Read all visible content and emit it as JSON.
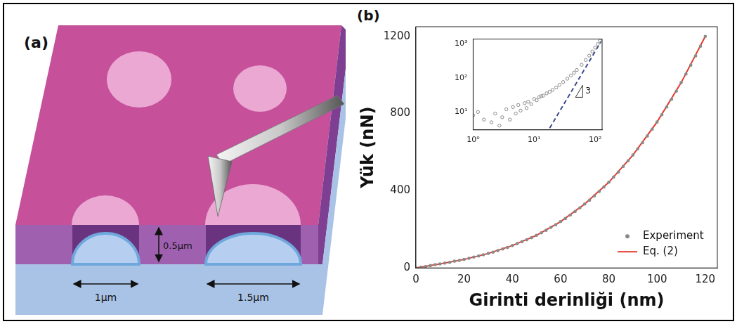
{
  "diagram": {
    "panel": "(a)",
    "thickness_label": "0.5μm",
    "hole_labels": [
      "1μm",
      "1.5μm"
    ]
  },
  "chart_data": [
    {
      "type": "scatter",
      "panel": "(b)",
      "x_label": "Girinti derinliği (nm)",
      "y_label": "Yük (nN)",
      "xlim": [
        0,
        125
      ],
      "xticks": [
        0,
        20,
        40,
        60,
        80,
        100,
        120
      ],
      "ylim": [
        0,
        1250
      ],
      "yticks": [
        0,
        400,
        800,
        1200
      ],
      "grid": false,
      "legend": "bottom-right",
      "series": [
        {
          "name": "Experiment",
          "type": "scatter",
          "marker": "circle",
          "color": "#8a8a8a",
          "x": [
            0,
            2,
            4,
            6,
            8,
            10,
            12,
            14,
            16,
            18,
            20,
            22,
            24,
            26,
            28,
            30,
            32,
            34,
            36,
            38,
            40,
            42,
            44,
            46,
            48,
            50,
            52,
            54,
            56,
            58,
            60,
            62,
            64,
            66,
            68,
            70,
            72,
            74,
            76,
            78,
            80,
            82,
            84,
            86,
            88,
            90,
            92,
            94,
            96,
            98,
            100,
            102,
            104,
            106,
            108,
            110,
            112,
            114,
            116,
            118,
            120
          ],
          "values": [
            0,
            3,
            7,
            12,
            17,
            21,
            25,
            29,
            35,
            39,
            44,
            50,
            56,
            62,
            68,
            75,
            82,
            90,
            98,
            106,
            116,
            126,
            136,
            146,
            157,
            169,
            182,
            195,
            210,
            224,
            240,
            256,
            274,
            292,
            311,
            331,
            351,
            373,
            396,
            420,
            444,
            471,
            497,
            526,
            555,
            585,
            617,
            649,
            684,
            719,
            756,
            794,
            834,
            874,
            916,
            960,
            1005,
            1051,
            1099,
            1149,
            1200
          ]
        },
        {
          "name": "Eq. (2)",
          "type": "line",
          "line_style": "solid",
          "color": "#e23a2e",
          "x": [
            0,
            10,
            20,
            30,
            40,
            50,
            60,
            70,
            80,
            90,
            100,
            110,
            120
          ],
          "values": [
            0,
            21,
            44,
            75,
            116,
            169,
            240,
            331,
            444,
            585,
            756,
            960,
            1200
          ]
        }
      ]
    },
    {
      "type": "scatter",
      "log": true,
      "xlim": [
        1,
        130
      ],
      "xticks": [
        {
          "value": 1,
          "label": "10⁰"
        },
        {
          "value": 10,
          "label": "10¹"
        },
        {
          "value": 100,
          "label": "10²"
        }
      ],
      "ylim": [
        3,
        1350
      ],
      "yticks": [
        {
          "value": 10,
          "label": "10¹"
        },
        {
          "value": 100,
          "label": "10²"
        },
        {
          "value": 1000,
          "label": "10³"
        }
      ],
      "grid": false,
      "annotation": "3",
      "series": [
        {
          "type": "scatter",
          "marker": "open circle",
          "color": "#8a8a8a",
          "x": [
            1,
            1.2,
            1.5,
            2,
            2.3,
            2.7,
            3,
            3.5,
            4,
            4.5,
            5,
            5.5,
            6,
            7,
            7.5,
            8,
            9,
            10,
            11,
            12,
            13,
            14,
            16,
            18,
            20,
            23,
            26,
            30,
            35,
            40,
            45,
            50,
            60,
            70,
            80,
            90,
            100,
            110,
            120
          ],
          "values": [
            8,
            10,
            6,
            5,
            9,
            4,
            7,
            12,
            6,
            14,
            9,
            16,
            11,
            18,
            13,
            20,
            17,
            24,
            22,
            27,
            29,
            30,
            35,
            39,
            44,
            52,
            62,
            75,
            94,
            116,
            141,
            169,
            240,
            331,
            444,
            585,
            756,
            960,
            1200
          ]
        },
        {
          "type": "line",
          "line_style": "dashed",
          "color": "#3a4a8a",
          "x": [
            18,
            125
          ],
          "values": [
            3.4,
            1150
          ]
        }
      ]
    }
  ]
}
